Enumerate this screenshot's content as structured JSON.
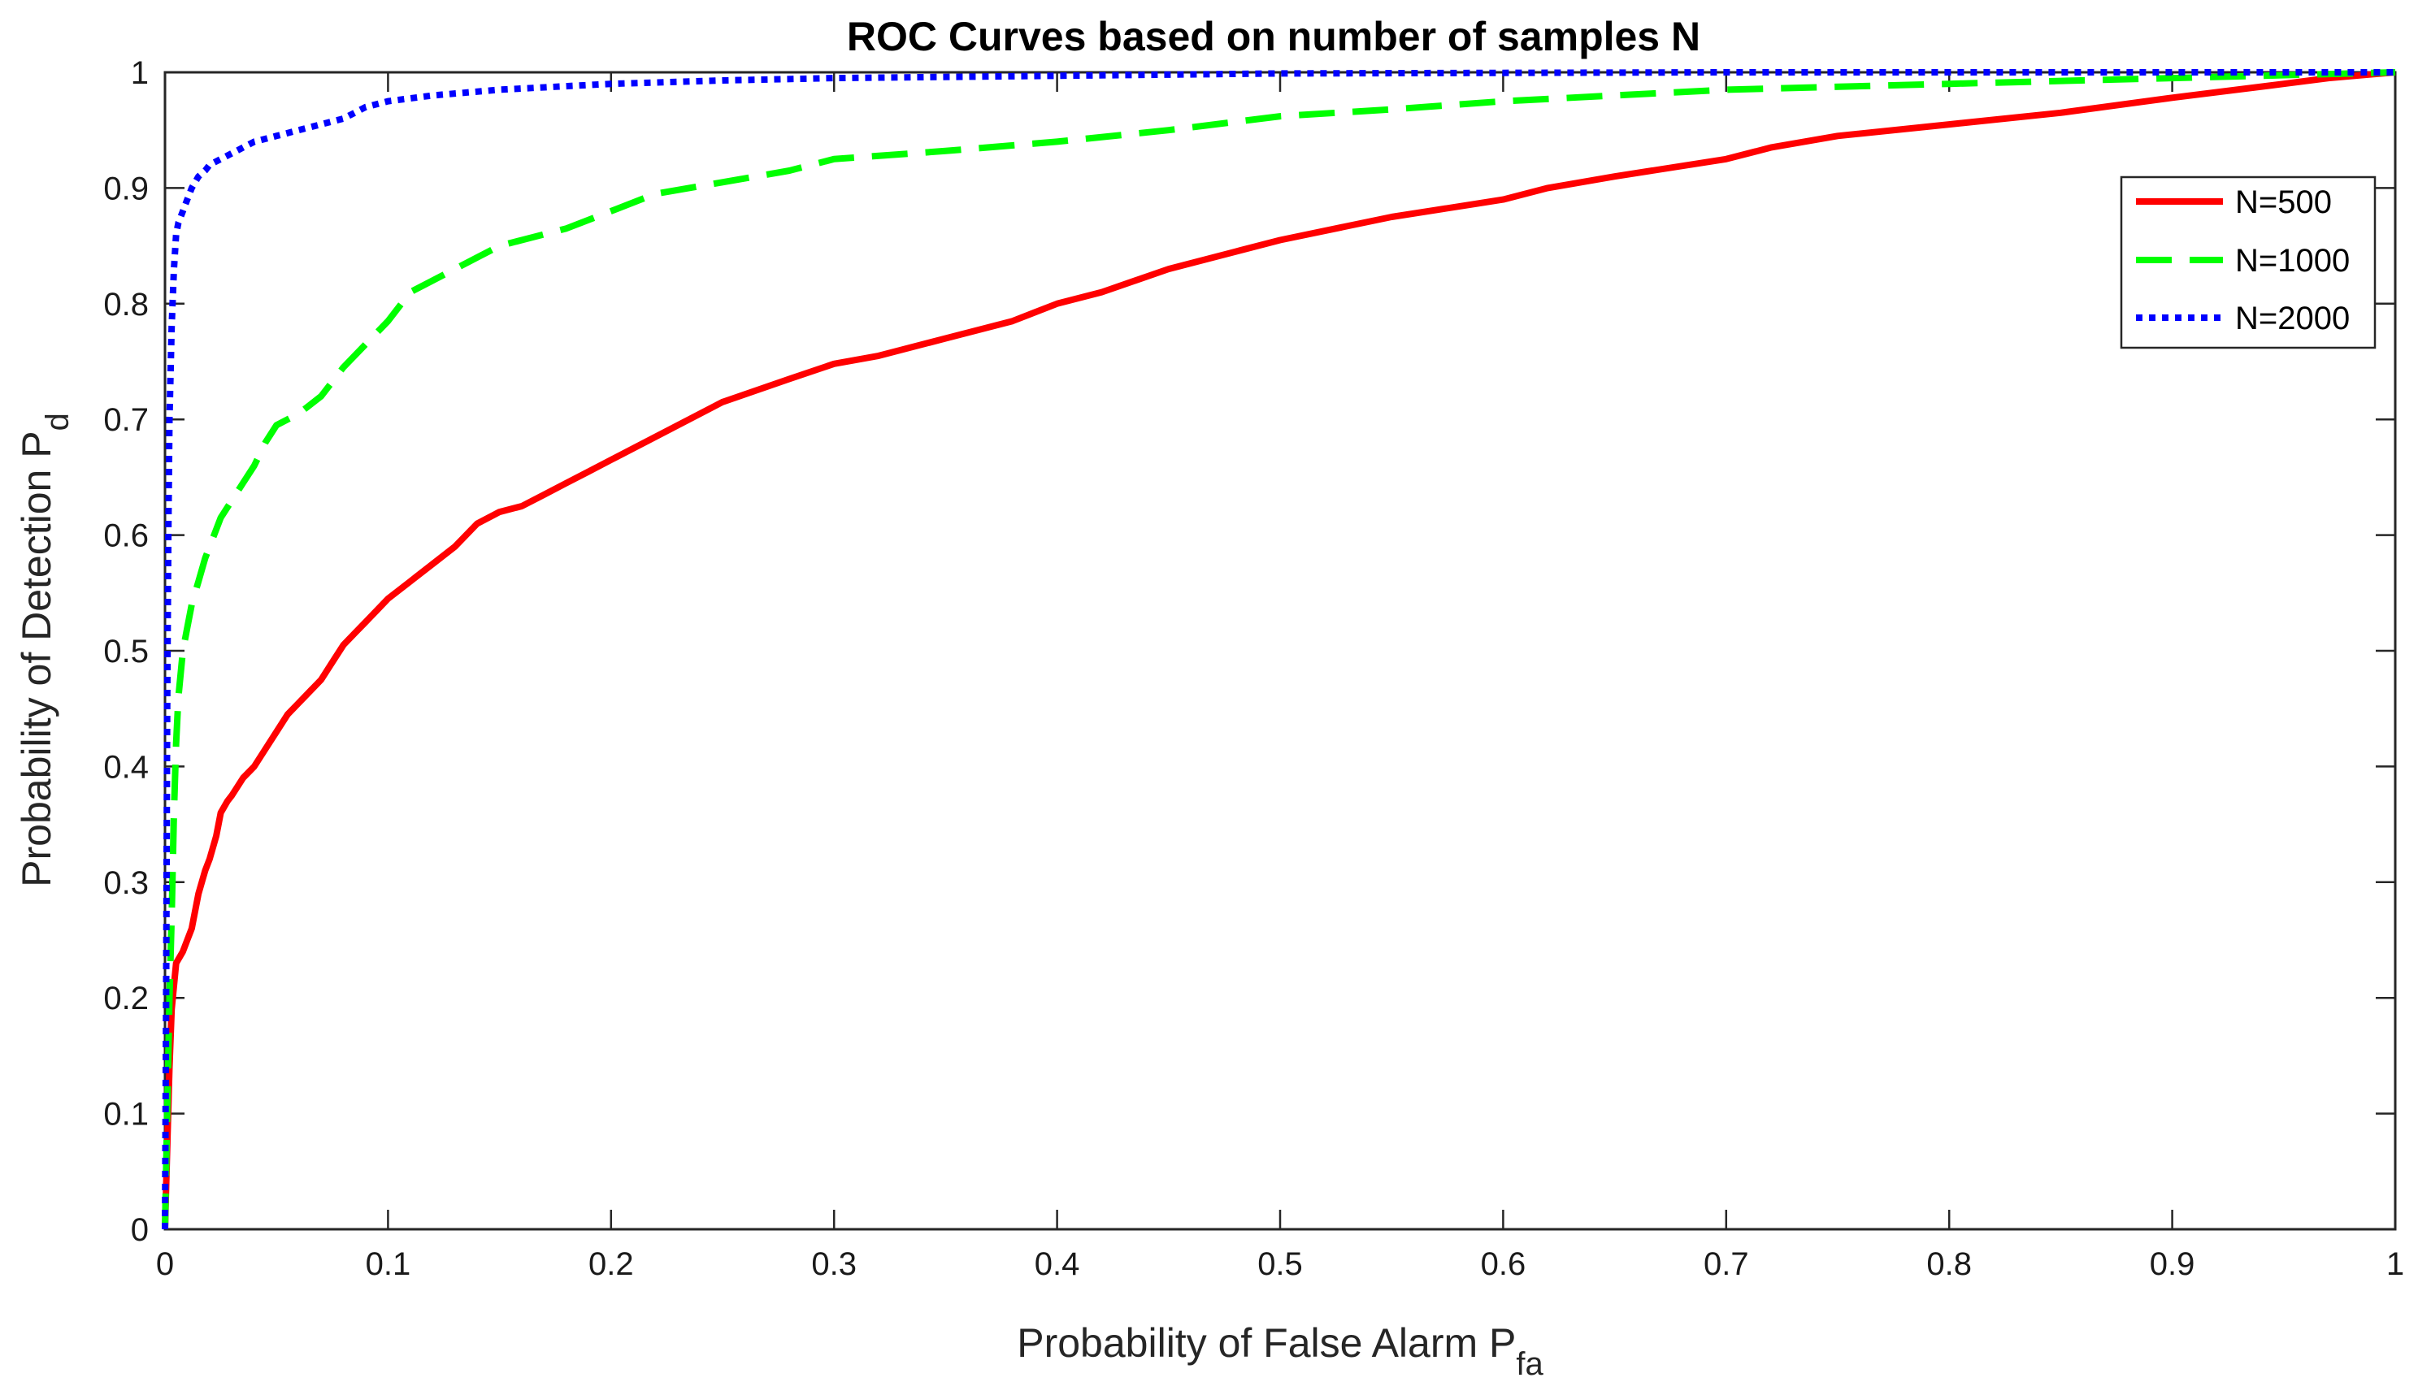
{
  "chart_data": {
    "type": "line",
    "title": "ROC Curves based on number of samples N",
    "xlabel": "Probability of False Alarm P",
    "xlabel_sub": "fa",
    "ylabel": "Probability of Detection P",
    "ylabel_sub": "d",
    "xlim": [
      0,
      1
    ],
    "ylim": [
      0,
      1
    ],
    "xticks": [
      "0",
      "0.1",
      "0.2",
      "0.3",
      "0.4",
      "0.5",
      "0.6",
      "0.7",
      "0.8",
      "0.9",
      "1"
    ],
    "yticks": [
      "0",
      "0.1",
      "0.2",
      "0.3",
      "0.4",
      "0.5",
      "0.6",
      "0.7",
      "0.8",
      "0.9",
      "1"
    ],
    "grid": false,
    "legend_position": "top-right",
    "series": [
      {
        "name": "N=500",
        "color": "#ff0000",
        "style": "solid",
        "x": [
          0,
          0.001,
          0.002,
          0.003,
          0.005,
          0.008,
          0.01,
          0.012,
          0.015,
          0.018,
          0.02,
          0.023,
          0.025,
          0.028,
          0.03,
          0.035,
          0.04,
          0.045,
          0.05,
          0.055,
          0.06,
          0.065,
          0.07,
          0.075,
          0.08,
          0.085,
          0.09,
          0.095,
          0.1,
          0.11,
          0.12,
          0.13,
          0.14,
          0.15,
          0.16,
          0.17,
          0.18,
          0.19,
          0.2,
          0.22,
          0.25,
          0.28,
          0.3,
          0.32,
          0.35,
          0.38,
          0.4,
          0.42,
          0.45,
          0.48,
          0.5,
          0.55,
          0.6,
          0.62,
          0.65,
          0.7,
          0.72,
          0.75,
          0.8,
          0.85,
          0.9,
          0.95,
          0.97,
          1
        ],
        "y": [
          0,
          0.07,
          0.14,
          0.19,
          0.23,
          0.24,
          0.25,
          0.26,
          0.29,
          0.31,
          0.32,
          0.34,
          0.36,
          0.37,
          0.375,
          0.39,
          0.4,
          0.415,
          0.43,
          0.445,
          0.455,
          0.465,
          0.475,
          0.49,
          0.505,
          0.515,
          0.525,
          0.535,
          0.545,
          0.56,
          0.575,
          0.59,
          0.61,
          0.62,
          0.625,
          0.635,
          0.645,
          0.655,
          0.665,
          0.685,
          0.715,
          0.735,
          0.748,
          0.755,
          0.77,
          0.785,
          0.8,
          0.81,
          0.83,
          0.845,
          0.855,
          0.875,
          0.89,
          0.9,
          0.91,
          0.925,
          0.935,
          0.945,
          0.955,
          0.965,
          0.978,
          0.99,
          0.995,
          1
        ]
      },
      {
        "name": "N=1000",
        "color": "#00ff00",
        "style": "dashed",
        "x": [
          0,
          0.001,
          0.002,
          0.003,
          0.004,
          0.005,
          0.006,
          0.008,
          0.01,
          0.012,
          0.015,
          0.018,
          0.02,
          0.025,
          0.03,
          0.035,
          0.04,
          0.045,
          0.05,
          0.06,
          0.07,
          0.08,
          0.09,
          0.1,
          0.11,
          0.12,
          0.13,
          0.14,
          0.15,
          0.16,
          0.18,
          0.2,
          0.22,
          0.25,
          0.28,
          0.3,
          0.35,
          0.4,
          0.45,
          0.5,
          0.55,
          0.6,
          0.7,
          0.8,
          0.9,
          1
        ],
        "y": [
          0,
          0.1,
          0.2,
          0.27,
          0.36,
          0.42,
          0.46,
          0.5,
          0.52,
          0.54,
          0.56,
          0.58,
          0.59,
          0.615,
          0.63,
          0.645,
          0.66,
          0.68,
          0.695,
          0.705,
          0.72,
          0.745,
          0.765,
          0.785,
          0.81,
          0.82,
          0.83,
          0.84,
          0.85,
          0.855,
          0.865,
          0.88,
          0.895,
          0.905,
          0.915,
          0.925,
          0.932,
          0.94,
          0.95,
          0.962,
          0.968,
          0.975,
          0.985,
          0.99,
          0.995,
          1
        ]
      },
      {
        "name": "N=2000",
        "color": "#0000ff",
        "style": "dotted",
        "x": [
          0,
          0.0005,
          0.001,
          0.0015,
          0.002,
          0.003,
          0.004,
          0.005,
          0.006,
          0.008,
          0.01,
          0.012,
          0.015,
          0.018,
          0.02,
          0.025,
          0.03,
          0.035,
          0.04,
          0.05,
          0.06,
          0.07,
          0.08,
          0.09,
          0.1,
          0.12,
          0.15,
          0.2,
          0.25,
          0.3,
          0.4,
          0.5,
          0.7,
          1
        ],
        "y": [
          0,
          0.2,
          0.45,
          0.6,
          0.7,
          0.78,
          0.83,
          0.86,
          0.87,
          0.88,
          0.89,
          0.9,
          0.91,
          0.915,
          0.92,
          0.925,
          0.93,
          0.935,
          0.94,
          0.945,
          0.95,
          0.955,
          0.96,
          0.97,
          0.975,
          0.98,
          0.985,
          0.99,
          0.993,
          0.995,
          0.997,
          0.999,
          1,
          1
        ]
      }
    ]
  }
}
